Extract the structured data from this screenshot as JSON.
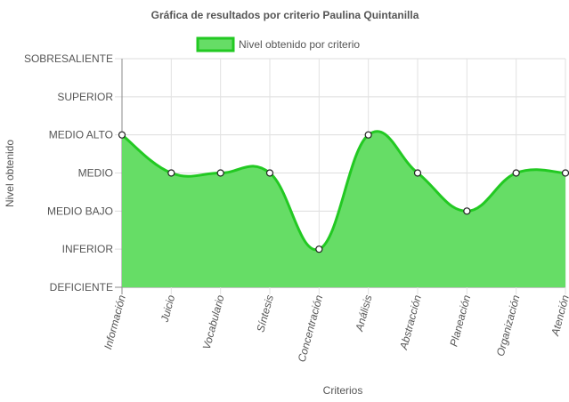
{
  "chart_data": {
    "type": "area",
    "title": "Gráfica de resultados por criterio Paulina Quintanilla",
    "xlabel": "Criterios",
    "ylabel": "Nivel obtenido",
    "levels": [
      "DEFICIENTE",
      "INFERIOR",
      "MEDIO BAJO",
      "MEDIO",
      "MEDIO ALTO",
      "SUPERIOR",
      "SOBRESALIENTE"
    ],
    "categories": [
      "Información",
      "Juicio",
      "Vocabulario",
      "Síntesis",
      "Concentración",
      "Análisis",
      "Abstracción",
      "Planeación",
      "Organización",
      "Atención"
    ],
    "series": [
      {
        "name": "Nivel obtenido por criterio",
        "values": [
          4,
          3,
          3,
          3,
          1,
          4,
          3,
          2,
          3,
          3
        ],
        "fill_color": "#66dd66",
        "line_color": "#22c922"
      }
    ],
    "ylim": [
      0,
      6
    ],
    "grid": true,
    "legend_position": "top-center"
  }
}
